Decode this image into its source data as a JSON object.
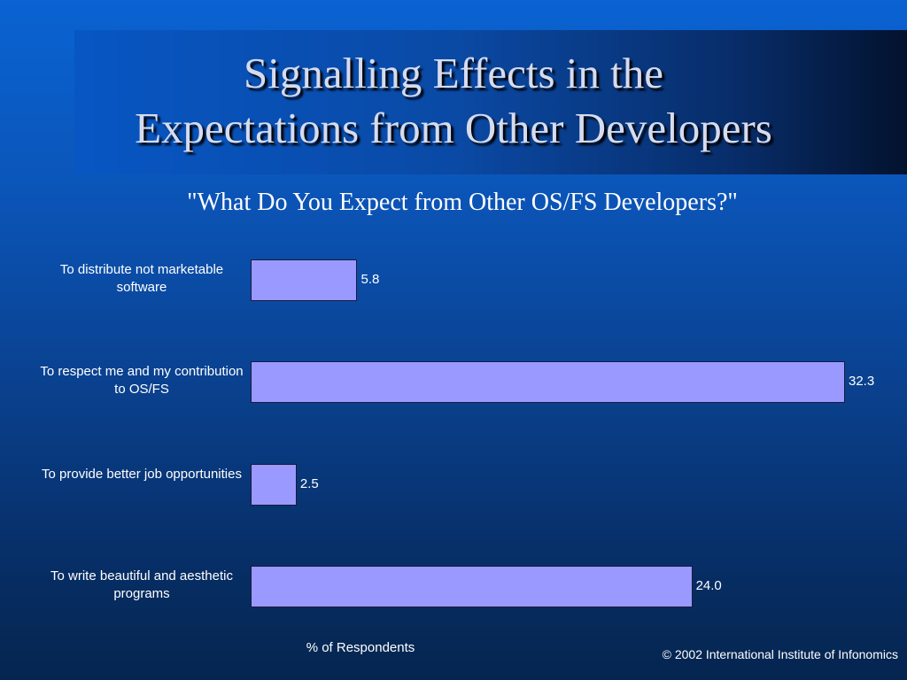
{
  "slide": {
    "title_lines": [
      "Signalling Effects in the",
      "Expectations from Other Developers"
    ],
    "copyright": "© 2002 International Institute of Infonomics"
  },
  "chart_data": {
    "type": "bar",
    "orientation": "horizontal",
    "title": "\"What Do You Expect from Other OS/FS Developers?\"",
    "xlabel": "% of Respondents",
    "categories": [
      "To distribute not marketable software",
      "To respect me and my contribution to OS/FS",
      "To provide better job opportunities",
      "To write beautiful and aesthetic programs"
    ],
    "values": [
      5.8,
      32.3,
      2.5,
      24.0
    ],
    "value_labels": [
      "5.8",
      "32.3",
      "2.5",
      "24.0"
    ],
    "xlim": [
      0,
      32.3
    ],
    "grid": false,
    "colors": {
      "bar": "#9999ff",
      "background": "#0a4291",
      "text": "#ffffff"
    }
  }
}
